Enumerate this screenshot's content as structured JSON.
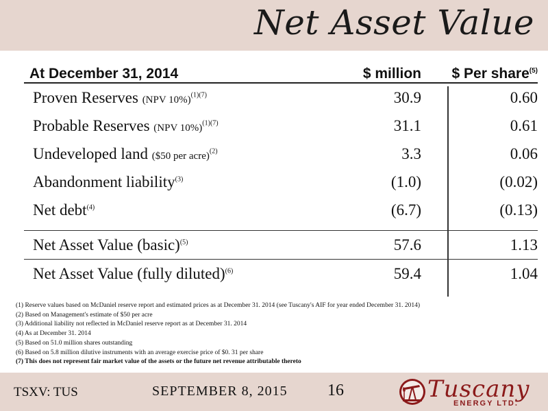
{
  "header": {
    "title": "Net Asset Value"
  },
  "table": {
    "columns": [
      "At December 31, 2014",
      "$ million",
      "$ Per share"
    ],
    "per_share_ref": "(5)",
    "rows": [
      {
        "label": "Proven Reserves",
        "note": "(NPV 10%)",
        "ref": "(1)(7)",
        "million": "30.9",
        "per_share": "0.60"
      },
      {
        "label": "Probable Reserves",
        "note": "(NPV 10%)",
        "ref": "(1)(7)",
        "million": "31.1",
        "per_share": "0.61"
      },
      {
        "label": "Undeveloped land",
        "note": "($50 per acre)",
        "ref": "(2)",
        "million": "3.3",
        "per_share": "0.06"
      },
      {
        "label": "Abandonment liability",
        "note": "",
        "ref": "(3)",
        "million": "(1.0)",
        "per_share": "(0.02)"
      },
      {
        "label": "Net debt",
        "note": "",
        "ref": "(4)",
        "million": "(6.7)",
        "per_share": "(0.13)"
      },
      {
        "label": "Net Asset Value (basic)",
        "note": "",
        "ref": "(5)",
        "million": "57.6",
        "per_share": "1.13"
      },
      {
        "label": "Net Asset Value (fully diluted)",
        "note": "",
        "ref": "(6)",
        "million": "59.4",
        "per_share": "1.04"
      }
    ]
  },
  "footnotes": [
    "(1) Reserve values based on McDaniel reserve report and estimated prices as at December 31. 2014 (see Tuscany's AIF for year ended December 31. 2014)",
    "(2) Based on Management's estimate of $50 per acre",
    "(3) Additional liability not reflected in McDaniel reserve report as at December 31. 2014",
    "(4) As at December 31. 2014",
    "(5) Based on 51.0 million shares outstanding",
    "(6) Based on 5.8 million dilutive instruments with an average exercise price of $0. 31 per share",
    "(7) This does not represent fair market value of the assets or the future net revenue attributable thereto"
  ],
  "footer": {
    "ticker": "TSXV: TUS",
    "date": "SEPTEMBER 8, 2015",
    "page_number": "16",
    "logo_name": "Tuscany",
    "logo_sub": "ENERGY LTD."
  },
  "colors": {
    "band": "#e6d6cf",
    "brand": "#8b1a1a"
  }
}
